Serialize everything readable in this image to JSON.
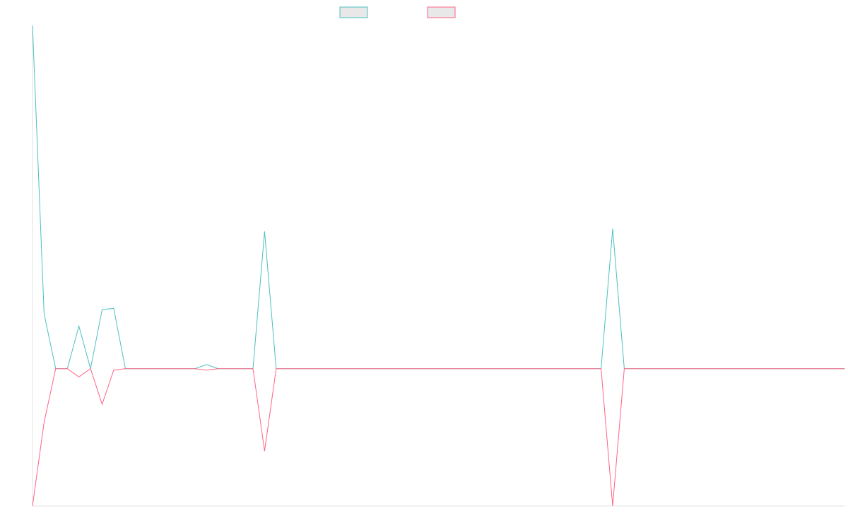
{
  "chart_data": {
    "type": "line",
    "title": "",
    "xlabel": "",
    "ylabel": "",
    "x": [
      0,
      1,
      2,
      3,
      4,
      5,
      6,
      7,
      8,
      9,
      10,
      11,
      12,
      13,
      14,
      15,
      16,
      17,
      18,
      19,
      20,
      21,
      22,
      23,
      24,
      25,
      26,
      27,
      28,
      29,
      30,
      31,
      32,
      33,
      34,
      35,
      36,
      37,
      38,
      39,
      40,
      41,
      42,
      43,
      44,
      45,
      46,
      47,
      48,
      49,
      50,
      51,
      52,
      53,
      54,
      55,
      56,
      57,
      58,
      59,
      60,
      61,
      62,
      63,
      64,
      65,
      66,
      67,
      68,
      69,
      70
    ],
    "ylim": [
      -100,
      250
    ],
    "grid": false,
    "legend_position": "top",
    "series": [
      {
        "name": "",
        "color": "#4bc0c0",
        "fill": "#e8e8e8",
        "values": [
          250,
          40,
          0,
          0,
          31,
          0,
          43,
          44,
          0,
          0,
          0,
          0,
          0,
          0,
          0,
          3,
          0,
          0,
          0,
          0,
          100,
          0,
          0,
          0,
          0,
          0,
          0,
          0,
          0,
          0,
          0,
          0,
          0,
          0,
          0,
          0,
          0,
          0,
          0,
          0,
          0,
          0,
          0,
          0,
          0,
          0,
          0,
          0,
          0,
          0,
          102,
          0,
          0,
          0,
          0,
          0,
          0,
          0,
          0,
          0,
          0,
          0,
          0,
          0,
          0,
          0,
          0,
          0,
          0,
          0,
          0
        ]
      },
      {
        "name": "",
        "color": "#ff6384",
        "fill": "#e8e8e8",
        "values": [
          -100,
          -39,
          0,
          0,
          -6,
          0,
          -26,
          -1,
          0,
          0,
          0,
          0,
          0,
          0,
          0,
          -1,
          0,
          0,
          0,
          0,
          -60,
          0,
          0,
          0,
          0,
          0,
          0,
          0,
          0,
          0,
          0,
          0,
          0,
          0,
          0,
          0,
          0,
          0,
          0,
          0,
          0,
          0,
          0,
          0,
          0,
          0,
          0,
          0,
          0,
          0,
          -100,
          0,
          0,
          0,
          0,
          0,
          0,
          0,
          0,
          0,
          0,
          0,
          0,
          0,
          0,
          0,
          0,
          0,
          0,
          0,
          0
        ]
      }
    ]
  }
}
